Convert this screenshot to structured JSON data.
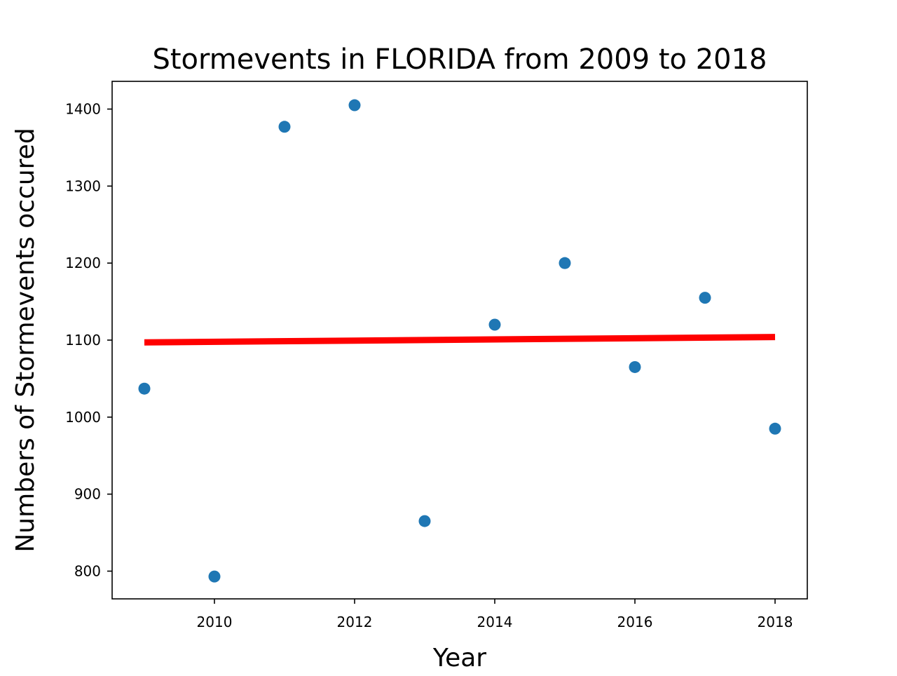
{
  "chart_data": {
    "type": "scatter",
    "title": "Stormevents in FLORIDA from 2009 to 2018",
    "xlabel": "Year",
    "ylabel": "Numbers of Stormevents occured",
    "xlim": [
      2008.54,
      2018.46
    ],
    "ylim": [
      764,
      1436
    ],
    "xticks": [
      2010,
      2012,
      2014,
      2016,
      2018
    ],
    "yticks": [
      800,
      900,
      1000,
      1100,
      1200,
      1300,
      1400
    ],
    "grid": false,
    "series": [
      {
        "type": "scatter",
        "color": "#1f77b4",
        "points": [
          {
            "x": 2009,
            "y": 1037
          },
          {
            "x": 2010,
            "y": 793
          },
          {
            "x": 2011,
            "y": 1377
          },
          {
            "x": 2012,
            "y": 1405
          },
          {
            "x": 2013,
            "y": 865
          },
          {
            "x": 2014,
            "y": 1120
          },
          {
            "x": 2015,
            "y": 1200
          },
          {
            "x": 2016,
            "y": 1065
          },
          {
            "x": 2017,
            "y": 1155
          },
          {
            "x": 2018,
            "y": 985
          }
        ]
      },
      {
        "type": "line",
        "color": "#ff0000",
        "points": [
          {
            "x": 2009,
            "y": 1097
          },
          {
            "x": 2018,
            "y": 1104
          }
        ]
      }
    ]
  }
}
